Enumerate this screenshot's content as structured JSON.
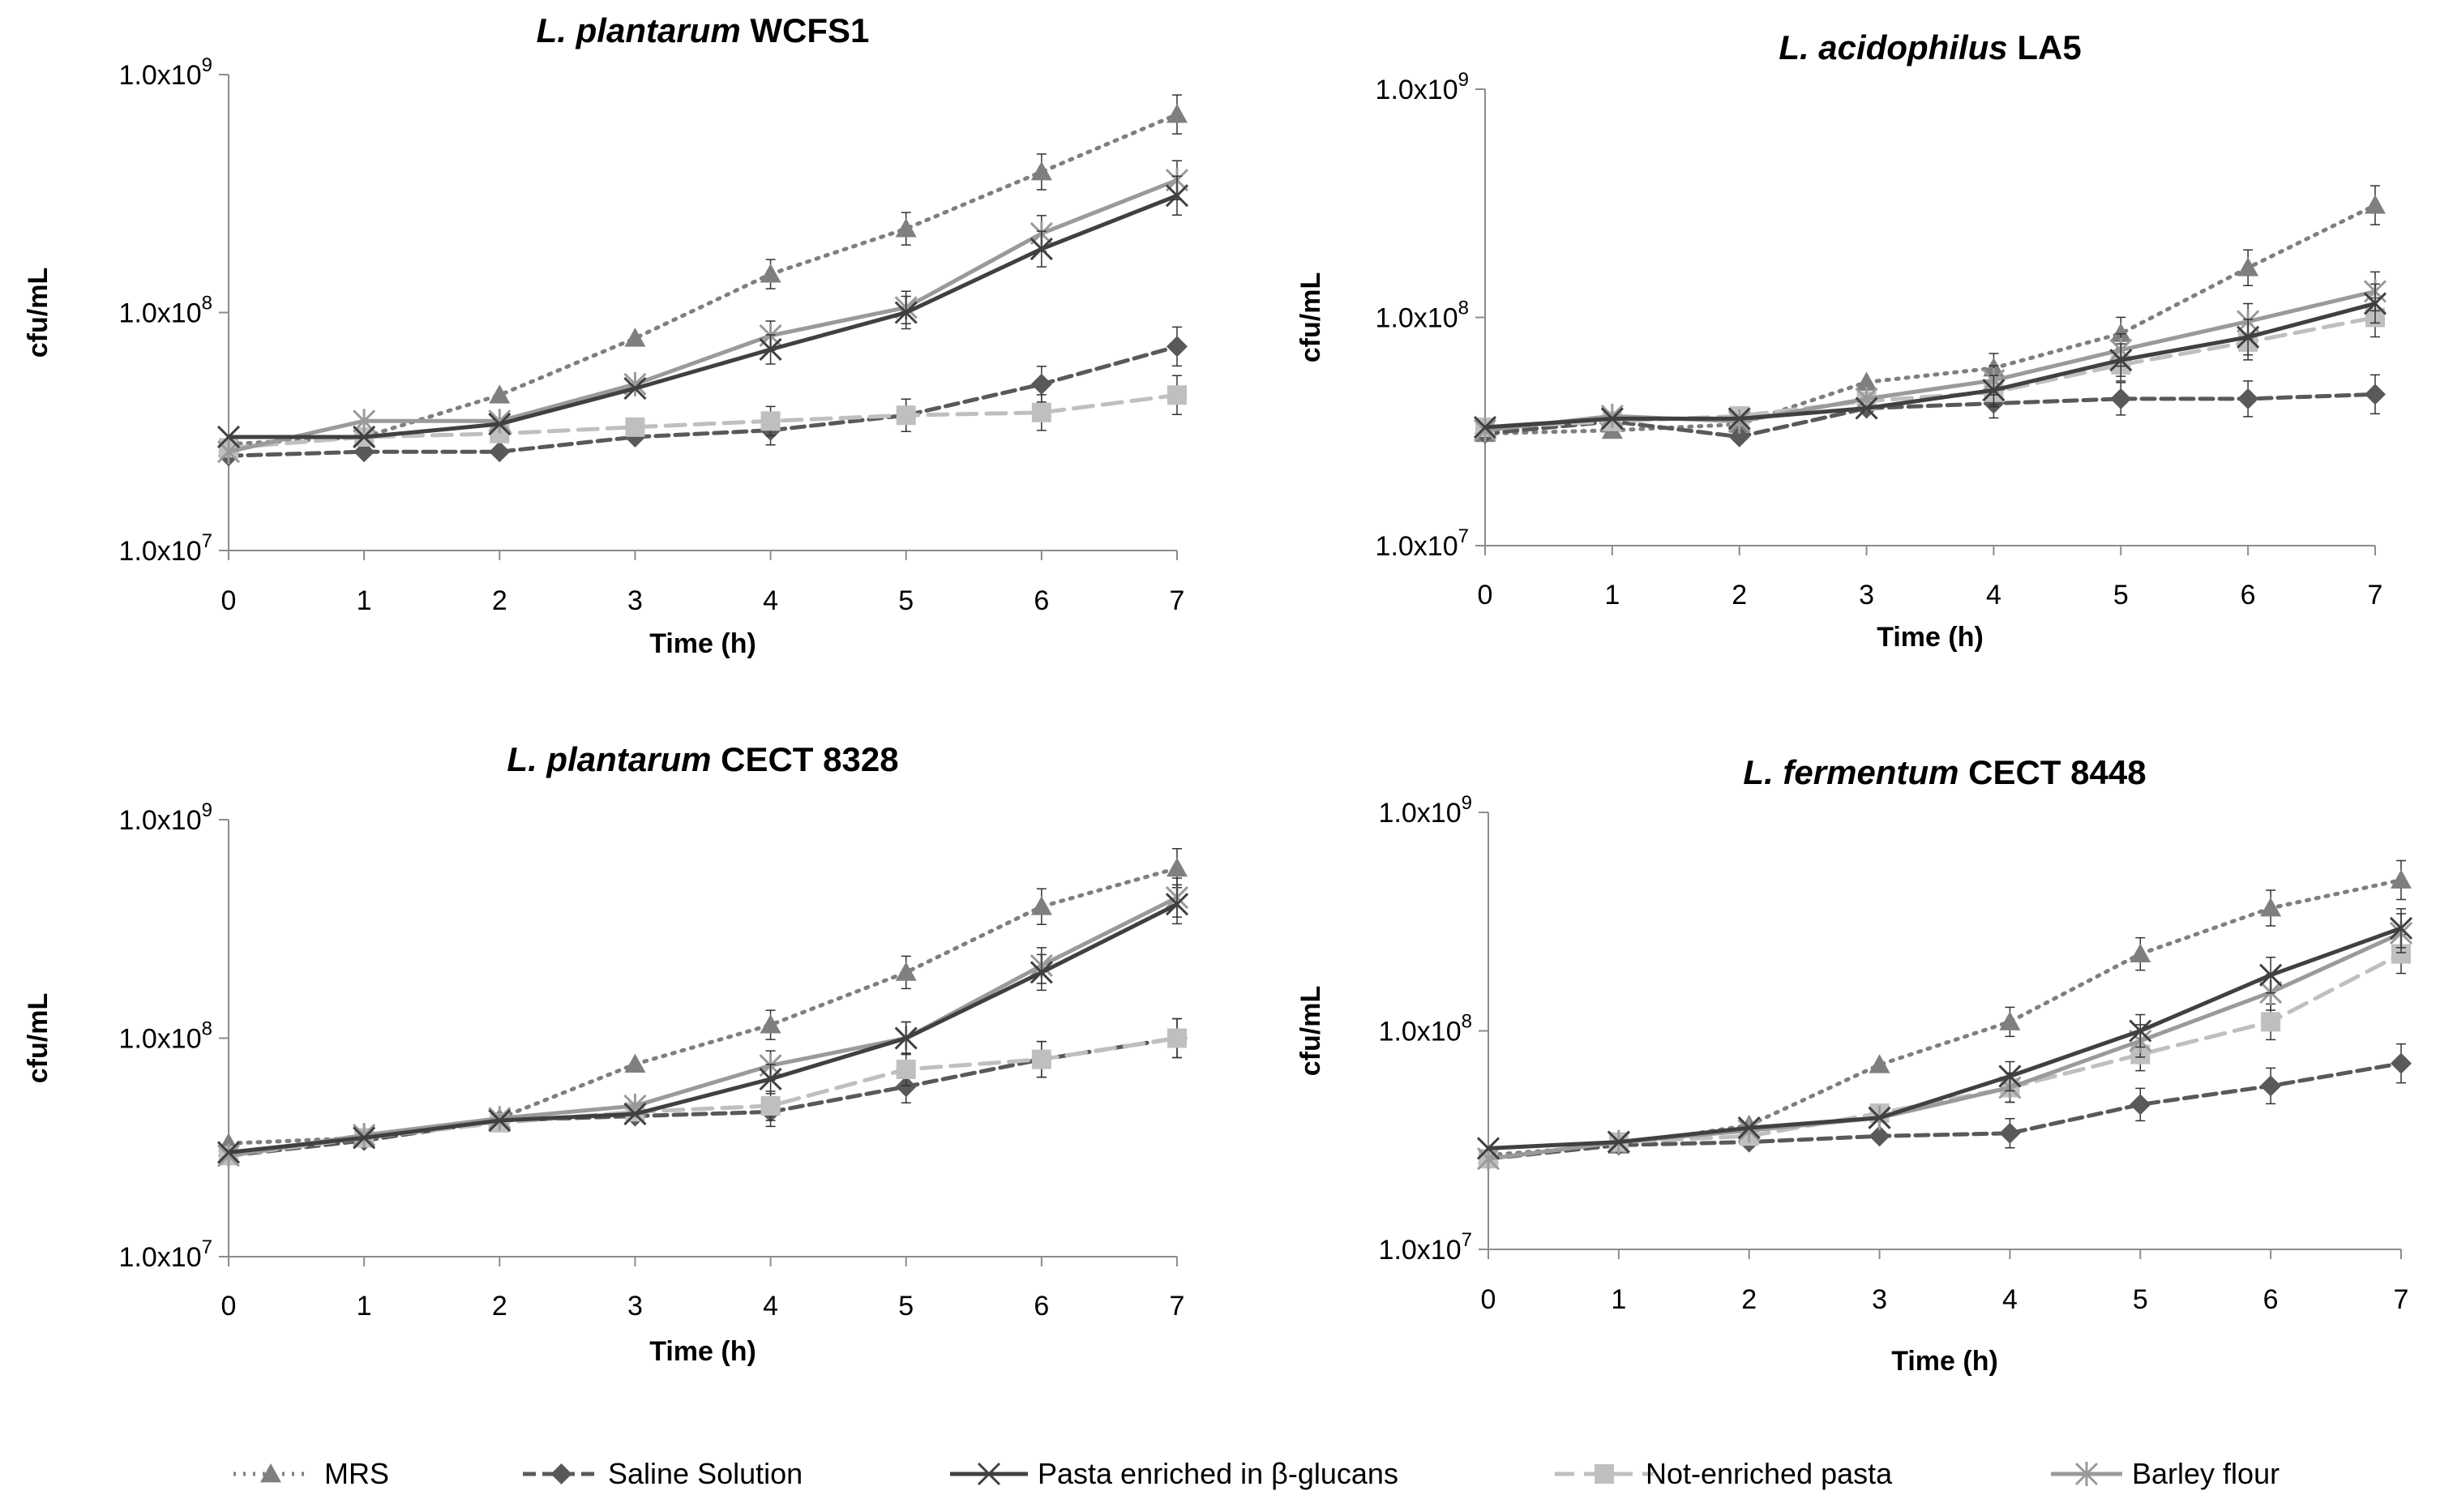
{
  "chart_data": [
    {
      "type": "line",
      "title_italic": "L. plantarum",
      "title_rest": "WCFS1",
      "xlabel": "Time (h)",
      "ylabel": "cfu/mL",
      "x": [
        0,
        1,
        2,
        3,
        4,
        5,
        6,
        7
      ],
      "y_scale": "log",
      "ylim": [
        10000000,
        1000000000
      ],
      "ytick_labels": [
        {
          "base": "1.0x10",
          "exp": "7"
        },
        {
          "base": "1.0x10",
          "exp": "8"
        },
        {
          "base": "1.0x10",
          "exp": "9"
        }
      ],
      "series": [
        {
          "name": "MRS",
          "values": [
            28000000,
            30000000,
            45000000,
            78000000,
            145000000,
            225000000,
            390000000,
            680000000
          ]
        },
        {
          "name": "Saline Solution",
          "values": [
            25000000,
            26000000,
            26000000,
            30000000,
            32000000,
            37000000,
            50000000,
            72000000
          ]
        },
        {
          "name": "Pasta enriched in β-glucans",
          "values": [
            30000000,
            30000000,
            34000000,
            48000000,
            70000000,
            100000000,
            185000000,
            310000000
          ]
        },
        {
          "name": "Not-enriched pasta",
          "values": [
            27000000,
            30000000,
            31000000,
            33000000,
            35000000,
            37000000,
            38000000,
            45000000
          ]
        },
        {
          "name": "Barley flour",
          "values": [
            26000000,
            35000000,
            35000000,
            50000000,
            80000000,
            105000000,
            215000000,
            360000000
          ]
        }
      ]
    },
    {
      "type": "line",
      "title_italic": "L. acidophilus",
      "title_rest": "LA5",
      "xlabel": "Time (h)",
      "ylabel": "cfu/mL",
      "x": [
        0,
        1,
        2,
        3,
        4,
        5,
        6,
        7
      ],
      "y_scale": "log",
      "ylim": [
        10000000,
        1000000000
      ],
      "ytick_labels": [
        {
          "base": "1.0x10",
          "exp": "7"
        },
        {
          "base": "1.0x10",
          "exp": "8"
        },
        {
          "base": "1.0x10",
          "exp": "9"
        }
      ],
      "series": [
        {
          "name": "MRS",
          "values": [
            31000000,
            32000000,
            34000000,
            52000000,
            60000000,
            85000000,
            165000000,
            310000000
          ]
        },
        {
          "name": "Saline Solution",
          "values": [
            31000000,
            35000000,
            30000000,
            40000000,
            42000000,
            44000000,
            44000000,
            46000000
          ]
        },
        {
          "name": "Pasta enriched in β-glucans",
          "values": [
            33000000,
            36000000,
            36000000,
            40000000,
            48000000,
            65000000,
            82000000,
            115000000
          ]
        },
        {
          "name": "Not-enriched pasta",
          "values": [
            33000000,
            35000000,
            37000000,
            43000000,
            47000000,
            62000000,
            78000000,
            100000000
          ]
        },
        {
          "name": "Barley flour",
          "values": [
            32000000,
            37000000,
            35000000,
            44000000,
            53000000,
            72000000,
            96000000,
            130000000
          ]
        }
      ]
    },
    {
      "type": "line",
      "title_italic": "L. plantarum",
      "title_rest": "CECT 8328",
      "xlabel": "Time (h)",
      "ylabel": "cfu/mL",
      "x": [
        0,
        1,
        2,
        3,
        4,
        5,
        6,
        7
      ],
      "y_scale": "log",
      "ylim": [
        10000000,
        1000000000
      ],
      "ytick_labels": [
        {
          "base": "1.0x10",
          "exp": "7"
        },
        {
          "base": "1.0x10",
          "exp": "8"
        },
        {
          "base": "1.0x10",
          "exp": "9"
        }
      ],
      "series": [
        {
          "name": "MRS",
          "values": [
            33000000,
            35000000,
            43000000,
            76000000,
            115000000,
            200000000,
            400000000,
            600000000
          ]
        },
        {
          "name": "Saline Solution",
          "values": [
            29000000,
            34000000,
            42000000,
            44000000,
            46000000,
            60000000,
            80000000,
            100000000
          ]
        },
        {
          "name": "Pasta enriched in β-glucans",
          "values": [
            30000000,
            35000000,
            42000000,
            45000000,
            65000000,
            100000000,
            200000000,
            410000000
          ]
        },
        {
          "name": "Not-enriched pasta",
          "values": [
            29000000,
            35000000,
            41000000,
            46000000,
            49000000,
            72000000,
            80000000,
            100000000
          ]
        },
        {
          "name": "Barley flour",
          "values": [
            29000000,
            36000000,
            43000000,
            49000000,
            75000000,
            100000000,
            215000000,
            440000000
          ]
        }
      ]
    },
    {
      "type": "line",
      "title_italic": "L. fermentum",
      "title_rest": "CECT 8448",
      "xlabel": "Time (h)",
      "ylabel": "cfu/mL",
      "x": [
        0,
        1,
        2,
        3,
        4,
        5,
        6,
        7
      ],
      "y_scale": "log",
      "ylim": [
        10000000,
        1000000000
      ],
      "ytick_labels": [
        {
          "base": "1.0x10",
          "exp": "7"
        },
        {
          "base": "1.0x10",
          "exp": "8"
        },
        {
          "base": "1.0x10",
          "exp": "9"
        }
      ],
      "series": [
        {
          "name": "MRS",
          "values": [
            27000000,
            30000000,
            37000000,
            70000000,
            110000000,
            225000000,
            365000000,
            490000000
          ]
        },
        {
          "name": "Saline Solution",
          "values": [
            26000000,
            30000000,
            31000000,
            33000000,
            34000000,
            46000000,
            56000000,
            71000000
          ]
        },
        {
          "name": "Pasta enriched in β-glucans",
          "values": [
            29000000,
            31000000,
            36000000,
            40000000,
            62000000,
            100000000,
            180000000,
            295000000
          ]
        },
        {
          "name": "Not-enriched pasta",
          "values": [
            26000000,
            31000000,
            33000000,
            42000000,
            55000000,
            78000000,
            110000000,
            225000000
          ]
        },
        {
          "name": "Barley flour",
          "values": [
            26000000,
            31000000,
            35000000,
            40000000,
            55000000,
            90000000,
            150000000,
            280000000
          ]
        }
      ]
    }
  ],
  "legend": [
    {
      "name": "MRS",
      "label": "MRS"
    },
    {
      "name": "Saline Solution",
      "label": "Saline Solution"
    },
    {
      "name": "Pasta enriched in β-glucans",
      "label": "Pasta enriched in β-glucans"
    },
    {
      "name": "Not-enriched pasta",
      "label": "Not-enriched pasta"
    },
    {
      "name": "Barley flour",
      "label": "Barley flour"
    }
  ],
  "series_style": {
    "MRS": {
      "color": "#7f7f7f",
      "dash": "dotted",
      "marker": "triangle"
    },
    "Saline Solution": {
      "color": "#595959",
      "dash": "dashed",
      "marker": "diamond"
    },
    "Pasta enriched in β-glucans": {
      "color": "#404040",
      "dash": "solid",
      "marker": "x"
    },
    "Not-enriched pasta": {
      "color": "#bfbfbf",
      "dash": "longdash",
      "marker": "square"
    },
    "Barley flour": {
      "color": "#9a9a9a",
      "dash": "solid",
      "marker": "asterisk"
    }
  }
}
